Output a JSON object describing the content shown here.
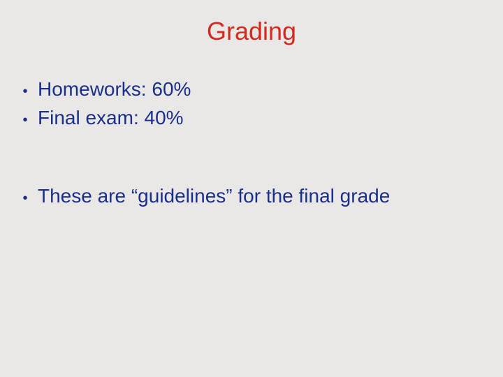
{
  "background_color": "#e9e8e7",
  "title": {
    "text": "Grading",
    "color": "#d12a1e",
    "font_size_pt": 36,
    "font_family": "Arial"
  },
  "bullets": {
    "color": "#1a2f8a",
    "font_size_pt": 28,
    "items": [
      {
        "text": "Homeworks: 60%",
        "gap_after": false
      },
      {
        "text": "Final exam: 40%",
        "gap_after": true
      },
      {
        "text": "These are “guidelines” for the final grade",
        "gap_after": false
      }
    ]
  }
}
